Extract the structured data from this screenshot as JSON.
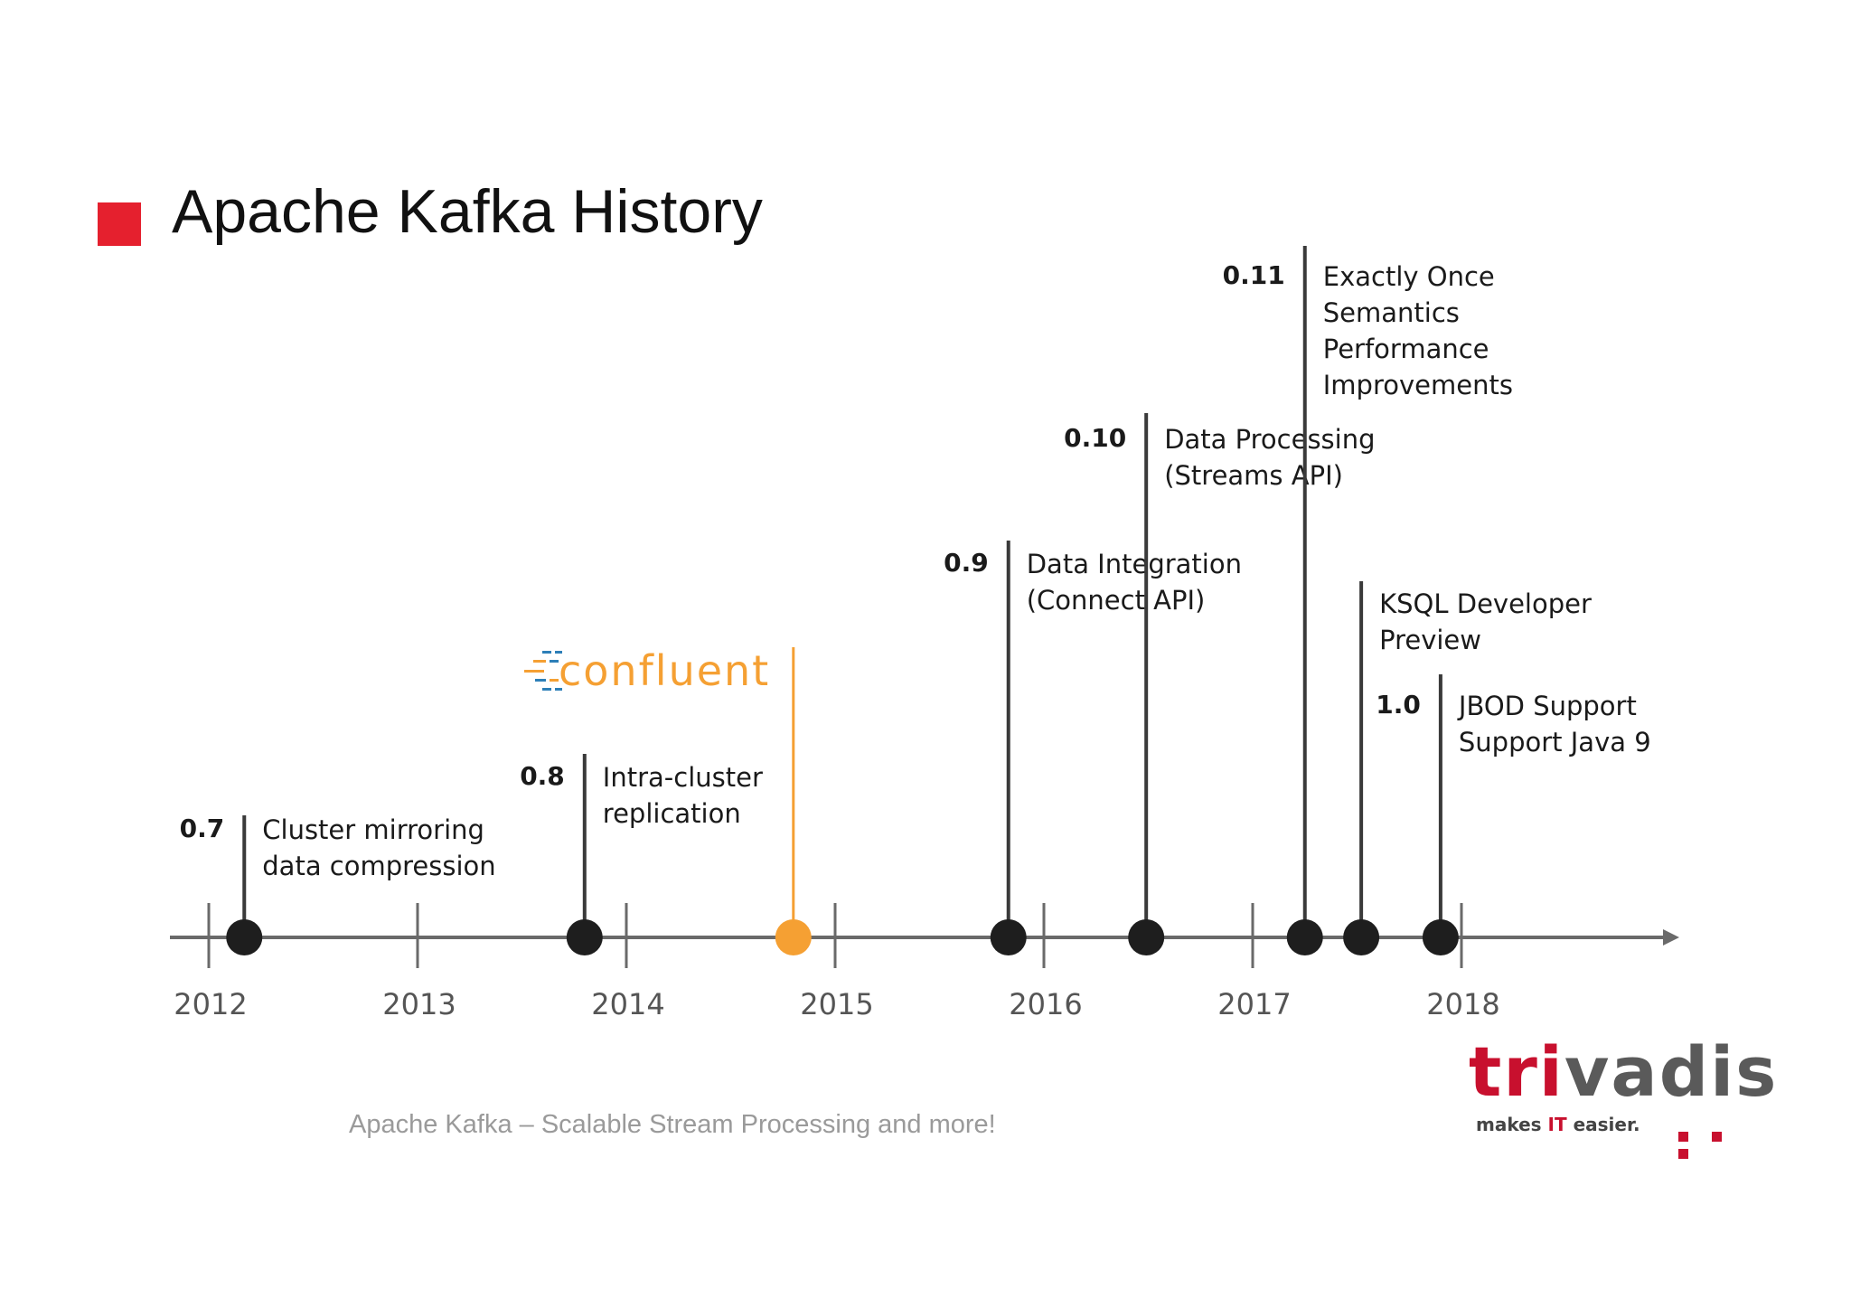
{
  "title": "Apache Kafka History",
  "footer": "Apache Kafka – Scalable Stream Processing and more!",
  "colors": {
    "accent": "#e5202e",
    "axis": "#6a6a6a",
    "event_line": "#3a3a3a",
    "dot": "#1e1e1e",
    "confluent": "#f5a033"
  },
  "years": [
    "2012",
    "2013",
    "2014",
    "2015",
    "2016",
    "2017",
    "2018"
  ],
  "events": [
    {
      "id": "v07",
      "date": 2012.17,
      "version": "0.7",
      "lines": [
        "Cluster mirroring",
        "data compression"
      ]
    },
    {
      "id": "v08",
      "date": 2013.8,
      "version": "0.8",
      "lines": [
        "Intra-cluster",
        "replication"
      ]
    },
    {
      "id": "confluent",
      "date": 2014.8,
      "version": "",
      "lines": []
    },
    {
      "id": "v09",
      "date": 2015.83,
      "version": "0.9",
      "lines": [
        "Data Integration",
        "(Connect API)"
      ]
    },
    {
      "id": "v010",
      "date": 2016.49,
      "version": "0.10",
      "lines": [
        "Data Processing",
        "(Streams API)"
      ]
    },
    {
      "id": "v011",
      "date": 2017.25,
      "version": "0.11",
      "lines": [
        "Exactly Once",
        "Semantics",
        "Performance",
        "Improvements"
      ]
    },
    {
      "id": "ksql",
      "date": 2017.52,
      "version": "",
      "lines": [
        "KSQL Developer",
        "Preview"
      ]
    },
    {
      "id": "v10",
      "date": 2017.9,
      "version": "1.0",
      "lines": [
        "JBOD Support",
        "Support Java 9"
      ]
    }
  ],
  "confluent_logo": {
    "word": "confluent"
  },
  "trivadis_logo": {
    "word_red": "tri",
    "word_gray": "vadis",
    "tagline_before": "makes ",
    "tagline_it": "IT",
    "tagline_after": " easier."
  }
}
